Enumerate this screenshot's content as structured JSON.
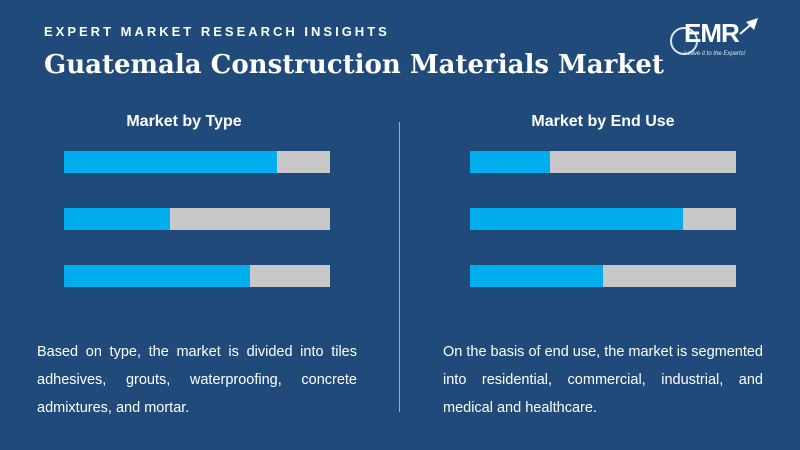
{
  "header": {
    "eyebrow": "EXPERT MARKET RESEARCH INSIGHTS",
    "title": "Guatemala Construction Materials Market",
    "logo_text": "EMR",
    "logo_tagline": "Leave it to the Experts!"
  },
  "colors": {
    "background": "#1f4a7a",
    "bar_fill": "#00aeef",
    "bar_track": "#c8c8c8"
  },
  "chart_data": [
    {
      "type": "bar",
      "orientation": "horizontal",
      "title": "Market by Type",
      "values": [
        0.8,
        0.4,
        0.7
      ],
      "ylim": [
        0,
        1
      ]
    },
    {
      "type": "bar",
      "orientation": "horizontal",
      "title": "Market by End Use",
      "values": [
        0.3,
        0.8,
        0.5
      ],
      "ylim": [
        0,
        1
      ]
    }
  ],
  "descriptions": {
    "left": "Based on type, the market is divided into tiles adhesives, grouts, waterproofing, concrete admixtures, and mortar.",
    "right": "On the basis of end use, the market is segmented into residential, commercial, industrial, and medical and healthcare."
  }
}
